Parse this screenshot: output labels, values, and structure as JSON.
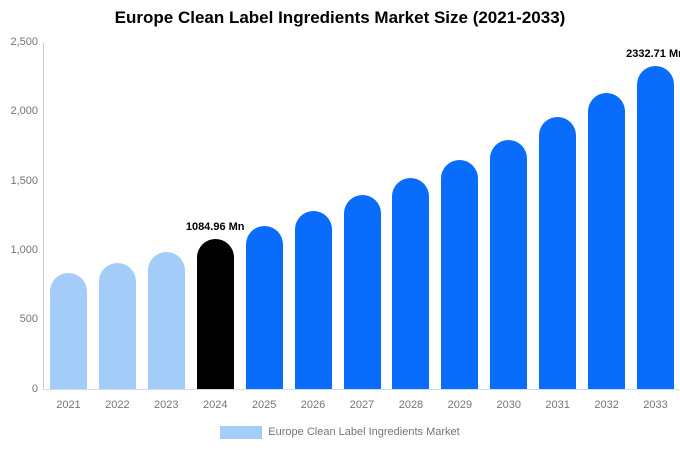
{
  "title": "Europe Clean Label Ingredients Market Size (2021-2033)",
  "chart_data": {
    "type": "bar",
    "title": "Europe Clean Label Ingredients Market Size (2021-2033)",
    "categories": [
      "2021",
      "2022",
      "2023",
      "2024",
      "2025",
      "2026",
      "2027",
      "2028",
      "2029",
      "2030",
      "2031",
      "2032",
      "2033"
    ],
    "values": [
      835,
      910,
      990,
      1084.96,
      1180,
      1285,
      1400,
      1520,
      1655,
      1800,
      1960,
      2135,
      2332.71
    ],
    "unit": "Mn",
    "xlabel": "",
    "ylabel": "",
    "ylim": [
      0,
      2500
    ],
    "ytick_values": [
      0,
      500,
      1000,
      1500,
      2000,
      2500
    ],
    "ytick_labels": [
      "0",
      "500",
      "1,000",
      "1,500",
      "2,000",
      "2,500"
    ],
    "grid": false,
    "legend_position": "bottom",
    "bar_colors": [
      "#A4CCF9",
      "#A4CCF9",
      "#A4CCF9",
      "#000000",
      "#0A6CFB",
      "#0A6CFB",
      "#0A6CFB",
      "#0A6CFB",
      "#0A6CFB",
      "#0A6CFB",
      "#0A6CFB",
      "#0A6CFB",
      "#0A6CFB"
    ],
    "point_labels": [
      {
        "index": 3,
        "text": "1084.96 Mn"
      },
      {
        "index": 12,
        "text": "2332.71 Mn"
      }
    ]
  },
  "legend": {
    "label": "Europe Clean Label Ingredients Market",
    "swatch_color": "#A4CCF9"
  },
  "colors": {
    "accent_blue": "#0A6CFB",
    "light_blue": "#A4CCF9",
    "highlight_black": "#000000",
    "axis_line": "#CCCCCC",
    "baseline": "#CDDEF4",
    "tick_text": "#757575",
    "value_label_text": "#000000"
  }
}
